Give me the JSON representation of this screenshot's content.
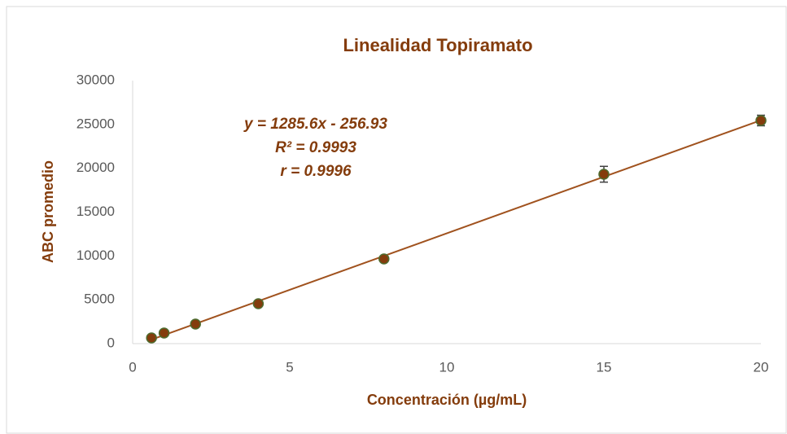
{
  "chart_data": {
    "type": "scatter",
    "title": "Linealidad Topiramato",
    "x_label": "Concentración (µg/mL)",
    "y_label": "ABC promedio",
    "annotations": [
      "y = 1285.6x - 256.93",
      "R² = 0.9993",
      "r = 0.9996"
    ],
    "x": [
      0.6,
      1,
      2,
      4,
      8,
      15,
      20
    ],
    "values": [
      650,
      1210,
      2230,
      4550,
      9660,
      19320,
      25450
    ],
    "errors": [
      null,
      null,
      null,
      null,
      null,
      900,
      600
    ],
    "color": "#843c0c",
    "trendline_color": "#a0521e",
    "xlim": [
      0,
      20
    ],
    "xticks": [
      0,
      5,
      10,
      15,
      20
    ],
    "ylim": [
      0,
      30000
    ],
    "yticks": [
      0,
      5000,
      10000,
      15000,
      20000,
      25000,
      30000
    ],
    "trendline": true,
    "grid": false
  }
}
